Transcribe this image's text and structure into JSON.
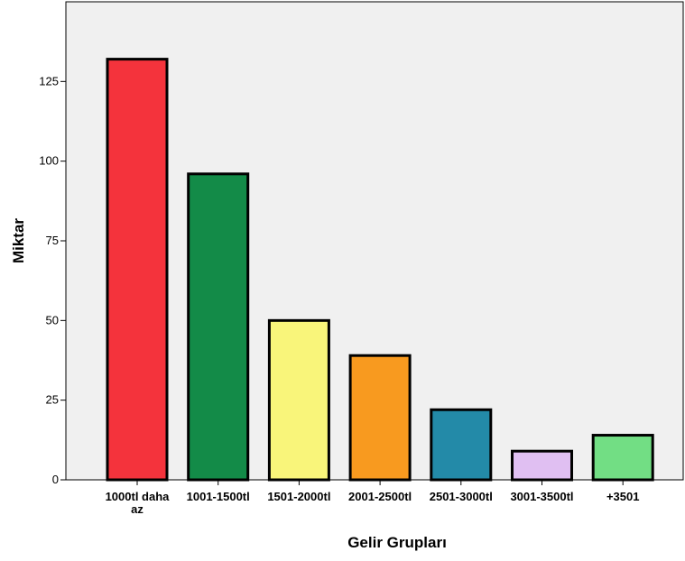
{
  "chart_data": {
    "type": "bar",
    "title": "",
    "xlabel": "Gelir Grupları",
    "ylabel": "Miktar",
    "categories": [
      [
        "1000tl daha",
        "az"
      ],
      [
        "1001-1500tl"
      ],
      [
        "1501-2000tl"
      ],
      [
        "2001-2500tl"
      ],
      [
        "2501-3000tl"
      ],
      [
        "3001-3500tl"
      ],
      [
        "+3501"
      ]
    ],
    "values": [
      132,
      96,
      50,
      39,
      22,
      9,
      14
    ],
    "colors": [
      "#f4333c",
      "#138b48",
      "#f9f57a",
      "#f89a1f",
      "#238aa8",
      "#e0bff2",
      "#72de84"
    ],
    "ylim": [
      0,
      150
    ],
    "yticks": [
      0,
      25,
      50,
      75,
      100,
      125
    ],
    "plot_background": "#f0f0f0",
    "grid": false,
    "legend": "none"
  }
}
